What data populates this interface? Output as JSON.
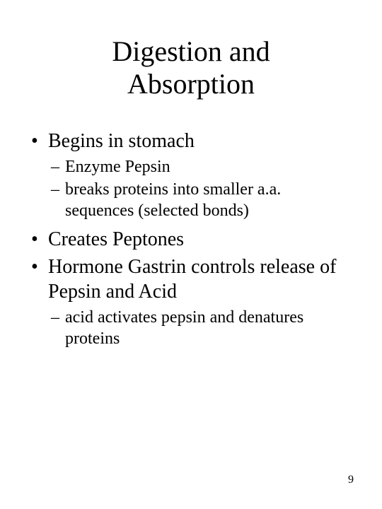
{
  "title_line1": "Digestion and",
  "title_line2": "Absorption",
  "bullets": [
    {
      "text": "Begins in stomach",
      "subs": [
        "Enzyme Pepsin",
        "breaks proteins into smaller a.a. sequences (selected bonds)"
      ]
    },
    {
      "text": "Creates Peptones",
      "subs": []
    },
    {
      "text": "Hormone Gastrin controls release of Pepsin and Acid",
      "subs": [
        "acid activates pepsin and denatures proteins"
      ]
    }
  ],
  "page_number": "9",
  "colors": {
    "background": "#ffffff",
    "text": "#000000"
  },
  "typography": {
    "font_family": "Times New Roman",
    "title_fontsize_pt": 30,
    "bullet_fontsize_pt": 21,
    "sub_fontsize_pt": 18,
    "pagenum_fontsize_pt": 12
  }
}
